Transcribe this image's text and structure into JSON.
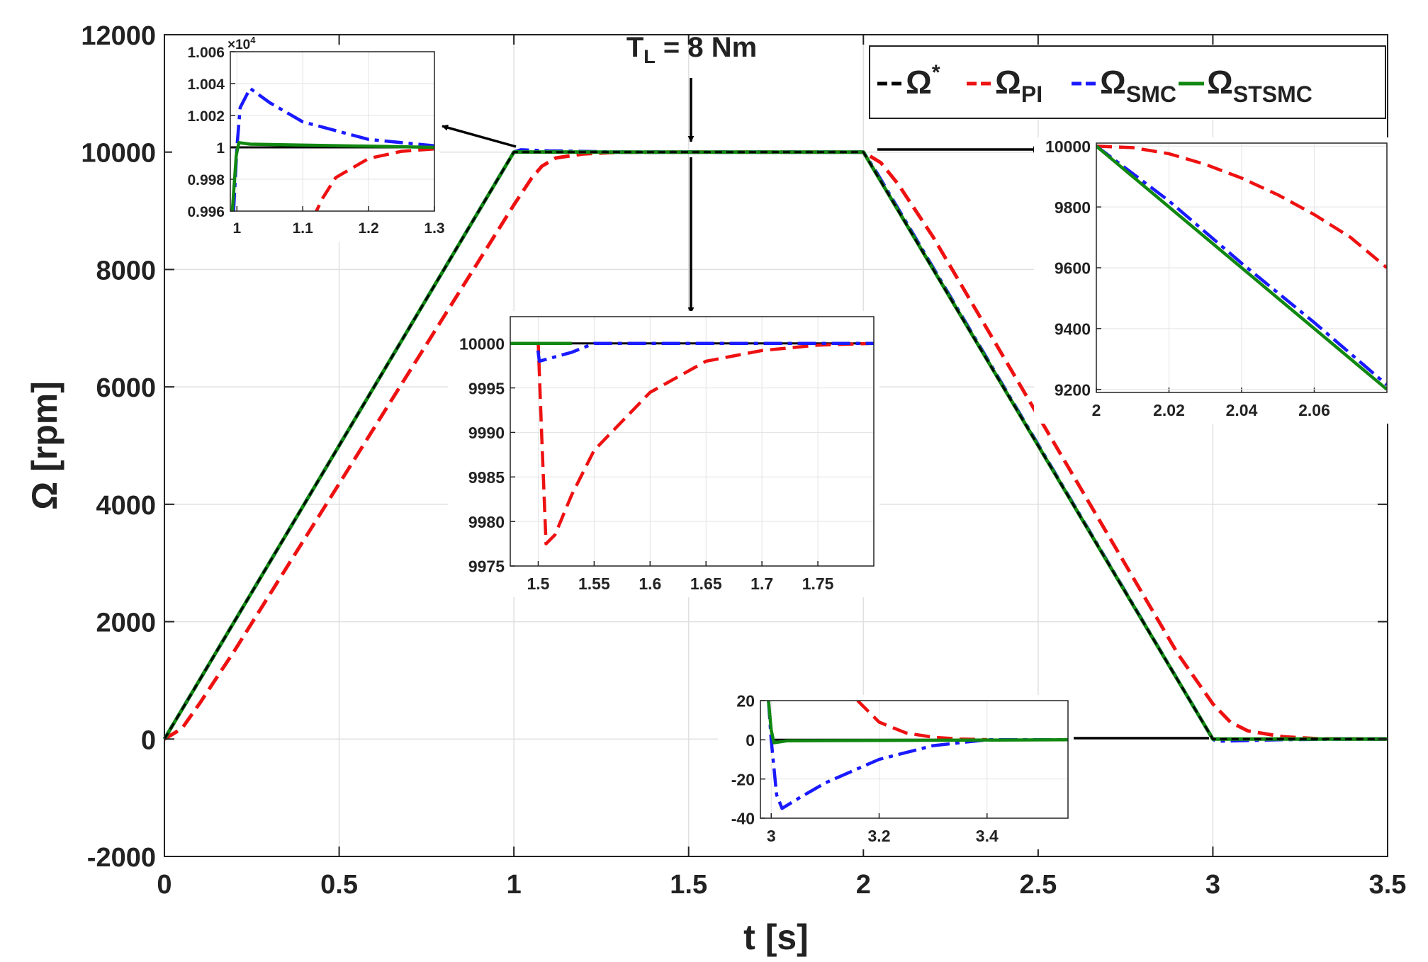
{
  "chart_data": {
    "type": "line",
    "title": "",
    "xlabel": "t [s]",
    "ylabel": "Ω [rpm]",
    "xlim": [
      0,
      3.5
    ],
    "ylim": [
      -2000,
      12000
    ],
    "grid": true,
    "xticks": [
      0,
      0.5,
      1,
      1.5,
      2,
      2.5,
      3,
      3.5
    ],
    "xtick_labels": [
      "0",
      "0.5",
      "1",
      "1.5",
      "2",
      "2.5",
      "3",
      "3.5"
    ],
    "yticks": [
      -2000,
      0,
      2000,
      4000,
      6000,
      8000,
      10000,
      12000
    ],
    "ytick_labels": [
      "-2000",
      "0",
      "2000",
      "4000",
      "6000",
      "8000",
      "10000",
      "12000"
    ],
    "annotation": {
      "text_main": "T",
      "text_sub": "L",
      "text_rest": " = 8 Nm",
      "t": 1.5
    },
    "legend": {
      "position": "top-right",
      "entries": [
        {
          "symbol": "Ω",
          "sup": "*",
          "sub": "",
          "color": "#000000"
        },
        {
          "symbol": "Ω",
          "sup": "",
          "sub": "PI",
          "color": "#ee1111"
        },
        {
          "symbol": "Ω",
          "sup": "",
          "sub": "SMC",
          "color": "#1a1aff"
        },
        {
          "symbol": "Ω",
          "sup": "",
          "sub": "STSMC",
          "color": "#118811"
        }
      ]
    },
    "series": [
      {
        "name": "Ω*",
        "color": "#000000",
        "dash": "10,6",
        "x": [
          0,
          1,
          2,
          3,
          3.5
        ],
        "y": [
          0,
          10000,
          10000,
          0,
          0
        ]
      },
      {
        "name": "ΩPI",
        "color": "#ee1111",
        "dash": "22,10",
        "x": [
          0,
          0.05,
          0.1,
          0.2,
          0.3,
          1.0,
          1.05,
          1.08,
          1.12,
          1.2,
          1.3,
          1.5,
          2.0,
          2.05,
          2.1,
          2.2,
          2.9,
          3.0,
          3.05,
          3.1,
          3.2,
          3.3,
          3.5
        ],
        "y": [
          0,
          180,
          600,
          1500,
          2450,
          9100,
          9550,
          9760,
          9900,
          9970,
          9998,
          10000,
          10000,
          9820,
          9450,
          8550,
          1450,
          600,
          290,
          140,
          40,
          5,
          0
        ]
      },
      {
        "name": "ΩSMC",
        "color": "#1a1aff",
        "dash": "26,8,6,8",
        "x": [
          0,
          1.0,
          1.02,
          1.1,
          1.3,
          2.0,
          2.04,
          3.0,
          3.01,
          3.05,
          3.2,
          3.35,
          3.5
        ],
        "y": [
          0,
          10000,
          10037,
          10018,
          10000,
          10000,
          9630,
          0,
          -33,
          -30,
          -8,
          0,
          0
        ]
      },
      {
        "name": "ΩSTSMC",
        "color": "#118811",
        "dash": "",
        "x": [
          0,
          1.0,
          1.01,
          1.03,
          1.3,
          2.0,
          3.0,
          3.5
        ],
        "y": [
          0,
          10000,
          10003,
          10001,
          10000,
          10000,
          0,
          0
        ]
      }
    ],
    "insets": [
      {
        "id": "inset-1",
        "xlim": [
          0.99,
          1.3
        ],
        "ylim": [
          0.996,
          1.006
        ],
        "yscale_label": "×10",
        "yscale_exp": "4",
        "series_scale": 10000,
        "xticks": [
          1,
          1.1,
          1.2,
          1.3
        ],
        "xtick_labels": [
          "1",
          "1.1",
          "1.2",
          "1.3"
        ],
        "yticks": [
          0.996,
          0.998,
          1,
          1.002,
          1.004,
          1.006
        ],
        "ytick_labels": [
          "0.996",
          "0.998",
          "1",
          "1.002",
          "1.004",
          "1.006"
        ],
        "series": [
          {
            "color": "#000000",
            "dash": "",
            "x": [
              0.99,
              1.3
            ],
            "y": [
              1.0,
              1.0
            ]
          },
          {
            "color": "#ee1111",
            "dash": "22,10",
            "x": [
              1.115,
              1.13,
              1.15,
              1.2,
              1.25,
              1.3
            ],
            "y": [
              0.9955,
              0.9968,
              0.9981,
              0.9993,
              0.99975,
              0.9999
            ]
          },
          {
            "color": "#1a1aff",
            "dash": "26,8,6,8",
            "x": [
              0.995,
              1.0,
              1.005,
              1.02,
              1.05,
              1.1,
              1.2,
              1.3
            ],
            "y": [
              0.996,
              1.0,
              1.0025,
              1.0037,
              1.0028,
              1.0016,
              1.0005,
              1.0001
            ]
          },
          {
            "color": "#118811",
            "dash": "",
            "x": [
              0.993,
              0.999,
              1.003,
              1.02,
              1.3
            ],
            "y": [
              0.996,
              0.9995,
              1.0003,
              1.0002,
              1.0
            ]
          }
        ]
      },
      {
        "id": "inset-2",
        "xlim": [
          1.475,
          1.8
        ],
        "ylim": [
          9975,
          10003
        ],
        "xticks": [
          1.5,
          1.55,
          1.6,
          1.65,
          1.7,
          1.75
        ],
        "xtick_labels": [
          "1.5",
          "1.55",
          "1.6",
          "1.65",
          "1.7",
          "1.75"
        ],
        "yticks": [
          9975,
          9980,
          9985,
          9990,
          9995,
          10000
        ],
        "ytick_labels": [
          "9975",
          "9980",
          "9985",
          "9990",
          "9995",
          "10000"
        ],
        "series": [
          {
            "color": "#000000",
            "dash": "",
            "x": [
              1.475,
              1.8
            ],
            "y": [
              10000,
              10000
            ]
          },
          {
            "color": "#ee1111",
            "dash": "22,10",
            "x": [
              1.475,
              1.5,
              1.503,
              1.507,
              1.515,
              1.53,
              1.55,
              1.6,
              1.65,
              1.7,
              1.75,
              1.8
            ],
            "y": [
              10000,
              10000,
              9990,
              9977.5,
              9978.5,
              9983,
              9988,
              9994.5,
              9998,
              9999.2,
              9999.8,
              10000
            ]
          },
          {
            "color": "#1a1aff",
            "dash": "26,8,6,8",
            "x": [
              1.475,
              1.499,
              1.501,
              1.53,
              1.55,
              1.8
            ],
            "y": [
              10000,
              10000,
              9998,
              9999,
              10000,
              10000
            ]
          },
          {
            "color": "#118811",
            "dash": "",
            "x": [
              1.475,
              1.53
            ],
            "y": [
              10000,
              10000
            ]
          }
        ]
      },
      {
        "id": "inset-3",
        "xlim": [
          2.0,
          2.08
        ],
        "ylim": [
          9190,
          10010
        ],
        "xticks": [
          2,
          2.02,
          2.04,
          2.06
        ],
        "xtick_labels": [
          "2",
          "2.02",
          "2.04",
          "2.06"
        ],
        "yticks": [
          9200,
          9400,
          9600,
          9800,
          10000
        ],
        "ytick_labels": [
          "9200",
          "9400",
          "9600",
          "9800",
          "10000"
        ],
        "series": [
          {
            "color": "#000000",
            "dash": "10,6",
            "x": [
              2.0,
              2.08
            ],
            "y": [
              10000,
              9200
            ]
          },
          {
            "color": "#ee1111",
            "dash": "22,10",
            "x": [
              2.0,
              2.01,
              2.02,
              2.03,
              2.04,
              2.05,
              2.06,
              2.07,
              2.08
            ],
            "y": [
              10000,
              9995,
              9975,
              9940,
              9895,
              9840,
              9775,
              9700,
              9600
            ]
          },
          {
            "color": "#1a1aff",
            "dash": "26,8,6,8",
            "x": [
              2.0,
              2.02,
              2.04,
              2.06,
              2.08
            ],
            "y": [
              10000,
              9820,
              9615,
              9420,
              9215
            ]
          },
          {
            "color": "#118811",
            "dash": "",
            "x": [
              2.0,
              2.08
            ],
            "y": [
              10000,
              9200
            ]
          }
        ]
      },
      {
        "id": "inset-4",
        "xlim": [
          2.98,
          3.55
        ],
        "ylim": [
          -40,
          20
        ],
        "xticks": [
          3,
          3.2,
          3.4
        ],
        "xtick_labels": [
          "3",
          "3.2",
          "3.4"
        ],
        "yticks": [
          -40,
          -20,
          0,
          20
        ],
        "ytick_labels": [
          "-40",
          "-20",
          "0",
          "20"
        ],
        "series": [
          {
            "color": "#000000",
            "dash": "",
            "x": [
              3.0,
              3.55
            ],
            "y": [
              0,
              0
            ]
          },
          {
            "color": "#ee1111",
            "dash": "22,10",
            "x": [
              3.16,
              3.2,
              3.25,
              3.3,
              3.35,
              3.4
            ],
            "y": [
              20,
              9,
              3.5,
              1.3,
              0.4,
              0.1
            ]
          },
          {
            "color": "#1a1aff",
            "dash": "26,8,6,8",
            "x": [
              2.995,
              3.0,
              3.01,
              3.02,
              3.05,
              3.1,
              3.2,
              3.3,
              3.4,
              3.55
            ],
            "y": [
              20,
              0,
              -28,
              -35,
              -30,
              -22,
              -10,
              -3,
              0,
              0
            ]
          },
          {
            "color": "#118811",
            "dash": "",
            "x": [
              2.995,
              3.0,
              3.005,
              3.03,
              3.55
            ],
            "y": [
              20,
              5,
              -1.5,
              -0.5,
              0
            ]
          }
        ]
      }
    ]
  }
}
